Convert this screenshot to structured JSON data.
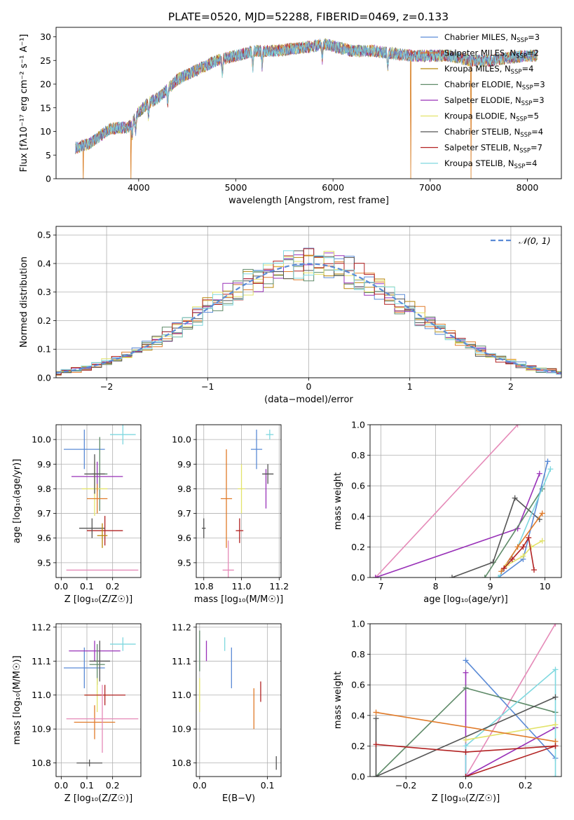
{
  "figure": {
    "title": "PLATE=0520, MJD=52288, FIBERID=0469, z=0.133"
  },
  "models": [
    {
      "name": "Chabrier MILES, N$_{SSP}$=3",
      "color": "#5b8bd6"
    },
    {
      "name": "Salpeter MILES, N$_{SSP}$=2",
      "color": "#e07b2a"
    },
    {
      "name": "Kroupa MILES, N$_{SSP}$=4",
      "color": "#b8860b"
    },
    {
      "name": "Chabrier ELODIE, N$_{SSP}$=3",
      "color": "#5e8a68"
    },
    {
      "name": "Salpeter ELODIE, N$_{SSP}$=3",
      "color": "#9932b8"
    },
    {
      "name": "Kroupa ELODIE, N$_{SSP}$=5",
      "color": "#e2e36a"
    },
    {
      "name": "Chabrier STELIB, N$_{SSP}$=4",
      "color": "#555555"
    },
    {
      "name": "Salpeter STELIB, N$_{SSP}$=7",
      "color": "#b22222"
    },
    {
      "name": "Kroupa STELIB, N$_{SSP}$=4",
      "color": "#7fd8df"
    }
  ],
  "chart_data": [
    {
      "id": "spectrum",
      "type": "line",
      "xlabel": "wavelength [Angstrom, rest frame]",
      "ylabel": "Flux [f$_λ$10$^{-17}$ erg cm$^{-2}$ s$^{-1}$ A$^{-1}$]",
      "xlim": [
        3150,
        8350
      ],
      "ylim": [
        0,
        32
      ],
      "xticks": [
        4000,
        5000,
        6000,
        7000,
        8000
      ],
      "yticks": [
        0,
        5,
        10,
        15,
        20,
        25,
        30
      ],
      "grid": false,
      "legend": "top-right",
      "wavelength_range": [
        3350,
        8100
      ],
      "continuum": {
        "x": [
          3350,
          3500,
          3700,
          3900,
          4000,
          4100,
          4200,
          4300,
          4400,
          4600,
          4800,
          5000,
          5200,
          5400,
          5600,
          5800,
          5900,
          6000,
          6200,
          6400,
          6600,
          6800,
          7000,
          7200,
          7400,
          7600,
          7800,
          8000,
          8100
        ],
        "y": [
          6.5,
          7.5,
          10.5,
          11,
          14,
          16,
          17,
          19,
          21,
          23,
          25,
          26,
          27,
          27,
          27.5,
          28,
          28.5,
          28,
          27,
          27,
          26.5,
          26,
          26,
          26,
          25,
          25,
          25.5,
          26,
          26
        ]
      },
      "dips": [
        [
          3430,
          0
        ],
        [
          3920,
          0
        ],
        [
          6800,
          0
        ],
        [
          7420,
          0
        ]
      ],
      "absorption_lines": [
        3934,
        3969,
        4102,
        4300,
        4861,
        5175,
        5270,
        5890,
        6563
      ]
    },
    {
      "id": "residuals",
      "type": "histogram",
      "xlabel": "(data-model)/error",
      "ylabel": "Normed distribution",
      "xlim": [
        -2.5,
        2.5
      ],
      "ylim": [
        0,
        0.53
      ],
      "xticks": [
        -2,
        -1,
        0,
        1,
        2
      ],
      "yticks": [
        0.0,
        0.1,
        0.2,
        0.3,
        0.4,
        0.5
      ],
      "grid": true,
      "bin_width": 0.1,
      "reference": {
        "label": "$\\mathcal{N}(0,1)$",
        "color": "#5b8bd6",
        "style": "dashed"
      },
      "legend": "top-right"
    },
    {
      "id": "age-vs-Z",
      "type": "errorbar",
      "xlabel": "Z [log$_{10}$(Z/Z$_\\odot$)]",
      "ylabel": "age  [log$_{10}$(age/yr)]",
      "xlim": [
        -0.02,
        0.31
      ],
      "ylim": [
        9.44,
        10.06
      ],
      "xticks": [
        0.0,
        0.1,
        0.2
      ],
      "yticks": [
        9.5,
        9.6,
        9.7,
        9.8,
        9.9,
        10.0
      ],
      "grid": true,
      "points": [
        {
          "model": 0,
          "x": 0.09,
          "y": 9.96,
          "xerr": 0.08,
          "yerr": 0.08
        },
        {
          "model": 8,
          "x": 0.24,
          "y": 10.02,
          "xerr": 0.05,
          "yerr": 0.04
        },
        {
          "model": 3,
          "x": 0.15,
          "y": 9.86,
          "xerr": 0.03,
          "yerr": 0.15
        },
        {
          "model": 4,
          "x": 0.14,
          "y": 9.85,
          "xerr": 0.1,
          "yerr": 0.06
        },
        {
          "model": 5,
          "x": 0.13,
          "y": 9.8,
          "xerr": 0.05,
          "yerr": 0.11
        },
        {
          "model": 6,
          "x": 0.13,
          "y": 9.86,
          "xerr": 0.04,
          "yerr": 0.08
        },
        {
          "model": 1,
          "x": 0.14,
          "y": 9.76,
          "xerr": 0.04,
          "yerr": 0.06
        },
        {
          "model": 7,
          "x": 0.17,
          "y": 9.63,
          "xerr": 0.07,
          "yerr": 0.06
        },
        {
          "model": 6,
          "x": 0.12,
          "y": 9.64,
          "xerr": 0.05,
          "yerr": 0.04
        },
        {
          "model": 2,
          "x": 0.16,
          "y": 9.61,
          "xerr": 0.02,
          "yerr": 0.05
        },
        {
          "model": 9,
          "x": 0.16,
          "y": 9.47,
          "xerr": 0.14,
          "yerr": 0.0
        }
      ]
    },
    {
      "id": "age-vs-mass",
      "type": "errorbar",
      "xlabel": "mass [log$_{10}$(M/M$_\\odot$)]",
      "ylabel": "",
      "xlim": [
        10.76,
        11.21
      ],
      "ylim": [
        9.44,
        10.06
      ],
      "xticks": [
        10.8,
        11.0,
        11.2
      ],
      "yticks": [
        9.5,
        9.6,
        9.7,
        9.8,
        9.9,
        10.0
      ],
      "grid": true,
      "points": [
        {
          "model": 0,
          "x": 11.08,
          "y": 9.96,
          "xerr": 0.03,
          "yerr": 0.08
        },
        {
          "model": 8,
          "x": 11.15,
          "y": 10.02,
          "xerr": 0.02,
          "yerr": 0.02
        },
        {
          "model": 4,
          "x": 11.13,
          "y": 9.8,
          "xerr": 0.0,
          "yerr": 0.08
        },
        {
          "model": 6,
          "x": 11.14,
          "y": 9.86,
          "xerr": 0.03,
          "yerr": 0.04
        },
        {
          "model": 5,
          "x": 11.0,
          "y": 9.8,
          "xerr": 0.02,
          "yerr": 0.1
        },
        {
          "model": 1,
          "x": 10.92,
          "y": 9.76,
          "xerr": 0.03,
          "yerr": 0.2
        },
        {
          "model": 6,
          "x": 10.8,
          "y": 9.64,
          "xerr": 0.01,
          "yerr": 0.04
        },
        {
          "model": 7,
          "x": 10.99,
          "y": 9.63,
          "xerr": 0.02,
          "yerr": 0.05
        },
        {
          "model": 9,
          "x": 10.93,
          "y": 9.47,
          "xerr": 0.03,
          "yerr": 0.12
        }
      ]
    },
    {
      "id": "mass-weight-vs-age",
      "type": "line",
      "xlabel": "age  [log$_{10}$(age/yr)]",
      "ylabel": "mass weight",
      "xlim": [
        6.8,
        10.3
      ],
      "ylim": [
        0,
        1
      ],
      "xticks": [
        7,
        8,
        9,
        10
      ],
      "yticks": [
        0.0,
        0.2,
        0.4,
        0.6,
        0.8,
        1.0
      ],
      "grid": true,
      "series": [
        {
          "model": 9,
          "x": [
            6.9,
            9.5
          ],
          "y": [
            0.0,
            1.0
          ]
        },
        {
          "model": 4,
          "x": [
            6.9,
            9.5,
            9.9
          ],
          "y": [
            0.0,
            0.32,
            0.68
          ]
        },
        {
          "model": 6,
          "x": [
            8.3,
            9.05,
            9.45,
            9.9
          ],
          "y": [
            0.0,
            0.1,
            0.52,
            0.38
          ]
        },
        {
          "model": 3,
          "x": [
            8.9,
            9.95
          ],
          "y": [
            0.0,
            0.58
          ]
        },
        {
          "model": 0,
          "x": [
            9.15,
            9.6,
            10.05
          ],
          "y": [
            0.0,
            0.12,
            0.76
          ]
        },
        {
          "model": 8,
          "x": [
            9.15,
            9.5,
            10.1
          ],
          "y": [
            0.0,
            0.2,
            0.71
          ]
        },
        {
          "model": 1,
          "x": [
            9.2,
            9.5,
            9.95
          ],
          "y": [
            0.04,
            0.2,
            0.42
          ]
        },
        {
          "model": 5,
          "x": [
            9.3,
            9.6,
            9.75,
            9.95
          ],
          "y": [
            0.08,
            0.14,
            0.2,
            0.24
          ]
        },
        {
          "model": 7,
          "x": [
            9.25,
            9.4,
            9.6,
            9.7,
            9.8
          ],
          "y": [
            0.06,
            0.12,
            0.2,
            0.26,
            0.05
          ]
        }
      ]
    },
    {
      "id": "mass-vs-Z",
      "type": "errorbar",
      "xlabel": "Z [log$_{10}$(Z/Z$_\\odot$)]",
      "ylabel": "mass [log$_{10}$(M/M$_\\odot$)]",
      "xlim": [
        -0.02,
        0.31
      ],
      "ylim": [
        10.76,
        11.21
      ],
      "xticks": [
        0.0,
        0.1,
        0.2
      ],
      "yticks": [
        10.8,
        10.9,
        11.0,
        11.1,
        11.2
      ],
      "grid": true,
      "points": [
        {
          "model": 0,
          "x": 0.09,
          "y": 11.08,
          "xerr": 0.08,
          "yerr": 0.06
        },
        {
          "model": 8,
          "x": 0.24,
          "y": 11.15,
          "xerr": 0.05,
          "yerr": 0.02
        },
        {
          "model": 4,
          "x": 0.13,
          "y": 11.13,
          "xerr": 0.1,
          "yerr": 0.03
        },
        {
          "model": 6,
          "x": 0.15,
          "y": 11.1,
          "xerr": 0.04,
          "yerr": 0.06
        },
        {
          "model": 3,
          "x": 0.14,
          "y": 11.09,
          "xerr": 0.03,
          "yerr": 0.06
        },
        {
          "model": 5,
          "x": 0.14,
          "y": 11.0,
          "xerr": 0.05,
          "yerr": 0.05
        },
        {
          "model": 7,
          "x": 0.17,
          "y": 11.0,
          "xerr": 0.08,
          "yerr": 0.03
        },
        {
          "model": 1,
          "x": 0.13,
          "y": 10.92,
          "xerr": 0.08,
          "yerr": 0.05
        },
        {
          "model": 9,
          "x": 0.16,
          "y": 10.93,
          "xerr": 0.14,
          "yerr": 0.1
        },
        {
          "model": 6,
          "x": 0.11,
          "y": 10.8,
          "xerr": 0.05,
          "yerr": 0.01
        }
      ]
    },
    {
      "id": "mass-vs-EBV",
      "type": "errorbar",
      "xlabel": "E(B-V)",
      "ylabel": "",
      "xlim": [
        -0.005,
        0.12
      ],
      "ylim": [
        10.76,
        11.21
      ],
      "xticks": [
        0.0,
        0.1
      ],
      "yticks": [
        10.8,
        10.9,
        11.0,
        11.1,
        11.2
      ],
      "grid": true,
      "points": [
        {
          "model": 3,
          "x": 0.0,
          "y": 11.13,
          "xerr": 0.0,
          "yerr": 0.06
        },
        {
          "model": 5,
          "x": 0.0,
          "y": 11.0,
          "xerr": 0.0,
          "yerr": 0.05
        },
        {
          "model": 4,
          "x": 0.01,
          "y": 11.13,
          "xerr": 0.0,
          "yerr": 0.03
        },
        {
          "model": 8,
          "x": 0.037,
          "y": 11.15,
          "xerr": 0.0,
          "yerr": 0.02
        },
        {
          "model": 0,
          "x": 0.047,
          "y": 11.08,
          "xerr": 0.0,
          "yerr": 0.06
        },
        {
          "model": 1,
          "x": 0.08,
          "y": 10.96,
          "xerr": 0.0,
          "yerr": 0.06
        },
        {
          "model": 7,
          "x": 0.09,
          "y": 11.01,
          "xerr": 0.0,
          "yerr": 0.03
        },
        {
          "model": 6,
          "x": 0.113,
          "y": 10.8,
          "xerr": 0.0,
          "yerr": 0.02
        }
      ]
    },
    {
      "id": "mass-weight-vs-Z",
      "type": "line",
      "xlabel": "Z [log$_{10}$(Z/Z$_\\odot$)]",
      "ylabel": "mass weight",
      "xlim": [
        -0.32,
        0.32
      ],
      "ylim": [
        0,
        1
      ],
      "xticks": [
        -0.2,
        0.0,
        0.2
      ],
      "yticks": [
        0.0,
        0.2,
        0.4,
        0.6,
        0.8,
        1.0
      ],
      "grid": true,
      "series": [
        {
          "model": 9,
          "x": [
            0.0,
            0.3
          ],
          "y": [
            0.0,
            1.0
          ]
        },
        {
          "model": 0,
          "x": [
            0.0,
            0.3
          ],
          "y": [
            0.76,
            0.12
          ]
        },
        {
          "model": 4,
          "x": [
            0.0,
            0.0,
            0.3
          ],
          "y": [
            0.68,
            0.0,
            0.32
          ]
        },
        {
          "model": 3,
          "x": [
            -0.3,
            0.0,
            0.3
          ],
          "y": [
            0.0,
            0.58,
            0.42
          ]
        },
        {
          "model": 8,
          "x": [
            0.0,
            0.0,
            0.3,
            0.3
          ],
          "y": [
            0.0,
            0.2,
            0.7,
            0.0
          ]
        },
        {
          "model": 6,
          "x": [
            -0.3,
            -0.3,
            0.3
          ],
          "y": [
            0.38,
            0.0,
            0.52
          ]
        },
        {
          "model": 5,
          "x": [
            0.0,
            0.3
          ],
          "y": [
            0.24,
            0.34
          ]
        },
        {
          "model": 1,
          "x": [
            -0.3,
            0.3
          ],
          "y": [
            0.42,
            0.23
          ]
        },
        {
          "model": 7,
          "x": [
            -0.3,
            0.0,
            0.3
          ],
          "y": [
            0.21,
            0.16,
            0.2
          ]
        },
        {
          "model": 7,
          "x": [
            0.0,
            0.3
          ],
          "y": [
            0.0,
            0.2
          ]
        }
      ]
    }
  ]
}
